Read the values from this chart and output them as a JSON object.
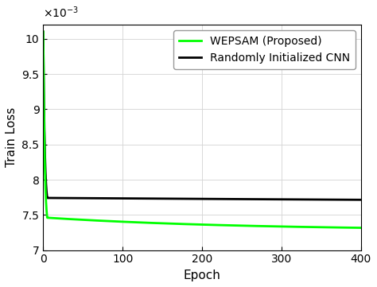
{
  "xlabel": "Epoch",
  "ylabel": "Train Loss",
  "xlim": [
    0,
    400
  ],
  "ylim": [
    0.007,
    0.0102
  ],
  "ytick_vals": [
    0.007,
    0.0075,
    0.008,
    0.0085,
    0.009,
    0.0095,
    0.01
  ],
  "ytick_labels": [
    "7",
    "7.5",
    "8",
    "8.5",
    "9",
    "9.5",
    "10"
  ],
  "xticks": [
    0,
    100,
    200,
    300,
    400
  ],
  "wepsam_color": "#00ff00",
  "cnn_color": "#000000",
  "wepsam_label": "WEPSAM (Proposed)",
  "cnn_label": "Randomly Initialized CNN",
  "line_width": 2.0,
  "background_color": "#ffffff",
  "legend_fontsize": 10,
  "axis_fontsize": 11,
  "tick_fontsize": 10,
  "exponent_label": "x 10-3"
}
